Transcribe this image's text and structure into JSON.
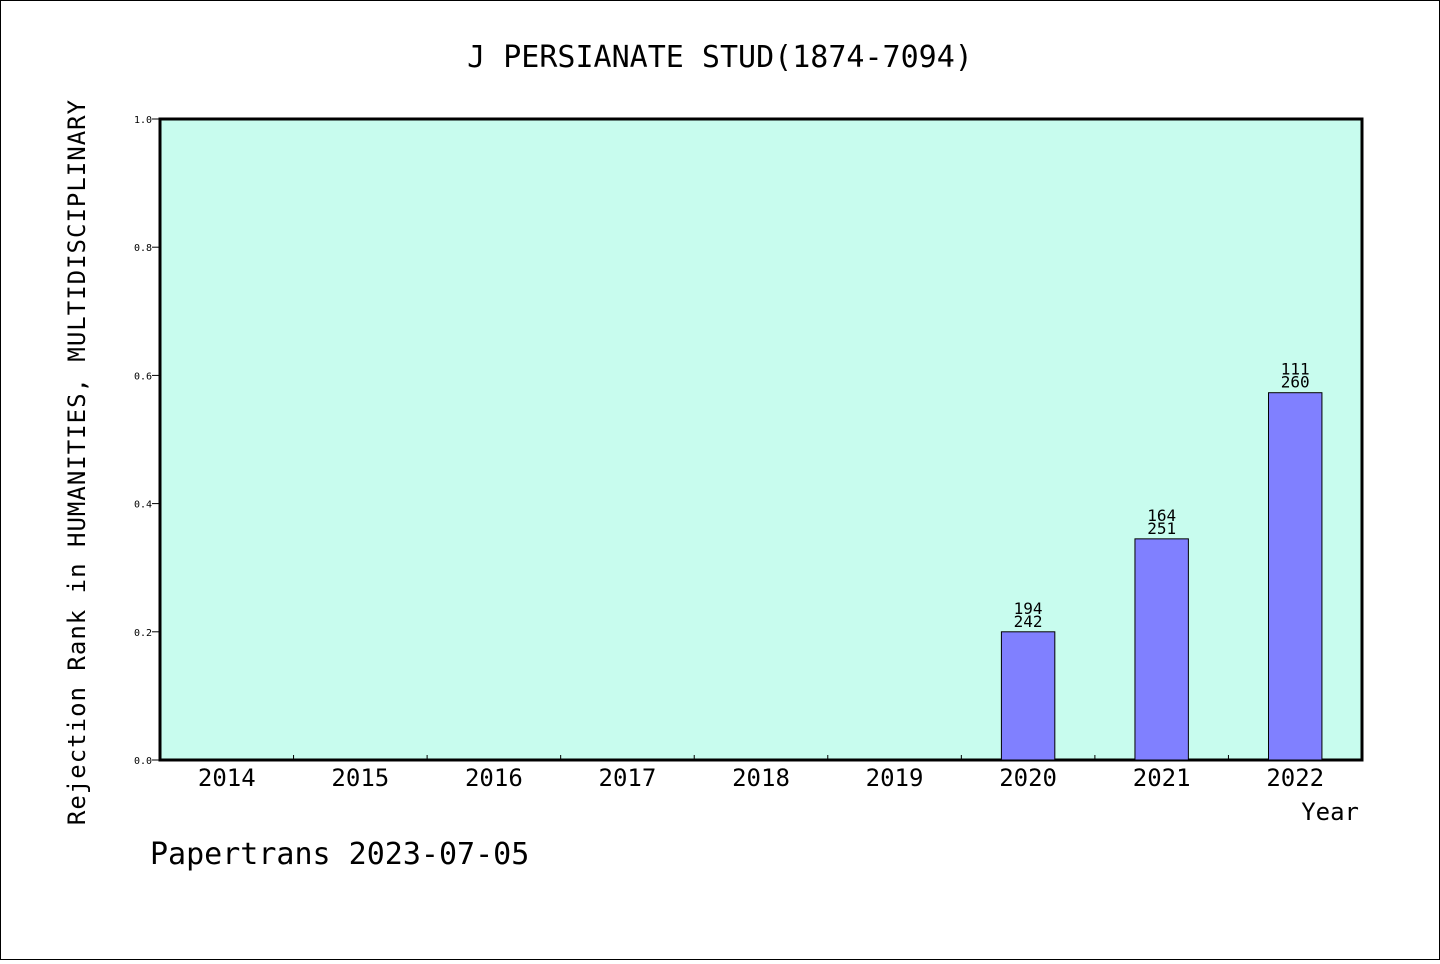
{
  "chart_data": {
    "type": "bar",
    "title": "J PERSIANATE STUD(1874-7094)",
    "xlabel": "Year",
    "ylabel": "Rejection Rank in HUMANITIES, MULTIDISCIPLINARY",
    "categories": [
      "2014",
      "2015",
      "2016",
      "2017",
      "2018",
      "2019",
      "2020",
      "2021",
      "2022"
    ],
    "values": [
      null,
      null,
      null,
      null,
      null,
      null,
      0.2,
      0.345,
      0.573
    ],
    "bar_labels_top": [
      null,
      null,
      null,
      null,
      null,
      null,
      "194",
      "164",
      "111"
    ],
    "bar_labels_bottom": [
      null,
      null,
      null,
      null,
      null,
      null,
      "242",
      "251",
      "260"
    ],
    "ylim": [
      0,
      1
    ],
    "yticks": [
      "0.0",
      "0.2",
      "0.4",
      "0.6",
      "0.8",
      "1.0"
    ],
    "grid": false,
    "plot_background": "#c8fcee",
    "bar_color": "#8080ff"
  },
  "footer": "Papertrans 2023-07-05"
}
